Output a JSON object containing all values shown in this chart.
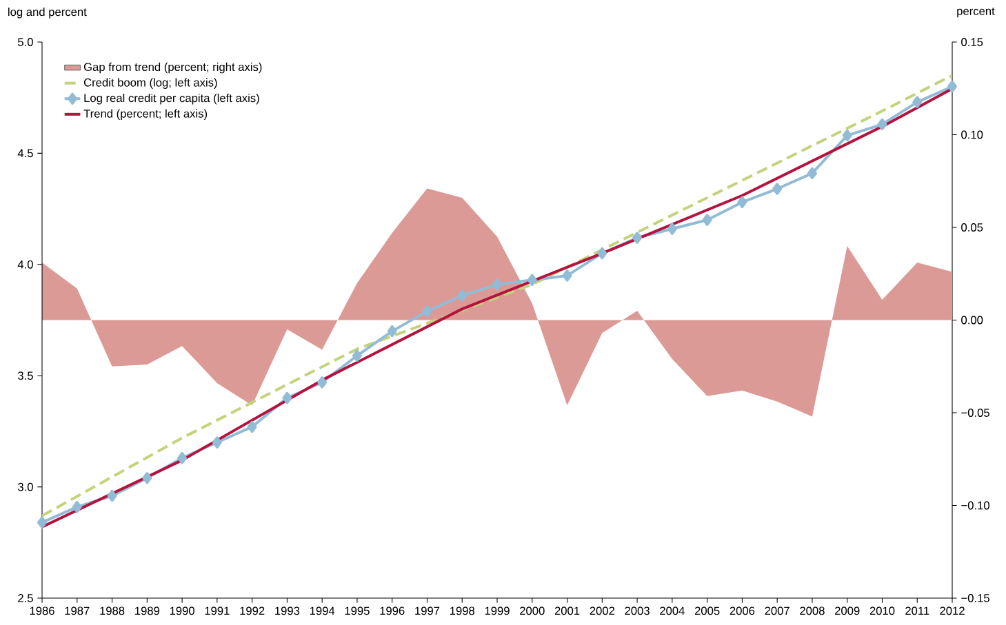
{
  "chart_data": {
    "type": "line",
    "ylabel": "log and percent",
    "y2label": "percent",
    "x": [
      1986,
      1987,
      1988,
      1989,
      1990,
      1991,
      1992,
      1993,
      1994,
      1995,
      1996,
      1997,
      1998,
      1999,
      2000,
      2001,
      2002,
      2003,
      2004,
      2005,
      2006,
      2007,
      2008,
      2009,
      2010,
      2011,
      2012
    ],
    "xlim": [
      1986,
      2012
    ],
    "xticks": [
      1986,
      1987,
      1988,
      1989,
      1990,
      1991,
      1992,
      1993,
      1994,
      1995,
      1996,
      1997,
      1998,
      1999,
      2000,
      2001,
      2002,
      2003,
      2004,
      2005,
      2006,
      2007,
      2008,
      2009,
      2010,
      2011,
      2012
    ],
    "ylim": [
      2.5,
      5
    ],
    "yticks": [
      {
        "value": 2.5,
        "label": "2.5"
      },
      {
        "value": 3,
        "label": "3.0"
      },
      {
        "value": 3.5,
        "label": "3.5"
      },
      {
        "value": 4,
        "label": "4.0"
      },
      {
        "value": 4.5,
        "label": "4.5"
      },
      {
        "value": 5,
        "label": "5.0"
      }
    ],
    "y2lim": [
      -0.15,
      0.15
    ],
    "y2ticks": [
      {
        "value": -0.15,
        "label": "−0.15"
      },
      {
        "value": -0.1,
        "label": "−0.10"
      },
      {
        "value": -0.05,
        "label": "−0.05"
      },
      {
        "value": 0,
        "label": "0.00"
      },
      {
        "value": 0.05,
        "label": "0.05"
      },
      {
        "value": 0.1,
        "label": "0.10"
      },
      {
        "value": 0.15,
        "label": "0.15"
      }
    ],
    "legend": "top left",
    "grid": false,
    "series": [
      {
        "name": "Gap from trend (percent; right axis)",
        "type": "area",
        "axis": "y2",
        "color": "#dc9a96",
        "values": [
          0.031,
          0.017,
          -0.025,
          -0.024,
          -0.014,
          -0.034,
          -0.046,
          -0.005,
          -0.016,
          0.02,
          0.047,
          0.071,
          0.066,
          0.045,
          0.009,
          -0.046,
          -0.007,
          0.005,
          -0.021,
          -0.041,
          -0.038,
          -0.044,
          -0.052,
          0.04,
          0.011,
          0.031,
          0.026
        ]
      },
      {
        "name": "Credit boom (log; left axis)",
        "line_style": "dashed",
        "color": "#c3d37c",
        "x": [
          1986,
          1990,
          1995,
          2000,
          2005,
          2010,
          2012
        ],
        "values": [
          2.87,
          3.22,
          3.62,
          3.91,
          4.3,
          4.69,
          4.85
        ]
      },
      {
        "name": "Log real credit per capita (left axis)",
        "marker": "diamond",
        "color": "#92bcd6",
        "values": [
          2.84,
          2.91,
          2.96,
          3.04,
          3.13,
          3.2,
          3.27,
          3.4,
          3.47,
          3.59,
          3.7,
          3.79,
          3.86,
          3.91,
          3.93,
          3.95,
          4.05,
          4.12,
          4.16,
          4.2,
          4.28,
          4.34,
          4.41,
          4.58,
          4.63,
          4.73,
          4.8
        ]
      },
      {
        "name": "Trend (percent; left axis)",
        "color": "#b5123e",
        "x": [
          1986,
          1990,
          1994,
          1998,
          2002,
          2006,
          2010,
          2012
        ],
        "values": [
          2.82,
          3.12,
          3.48,
          3.8,
          4.05,
          4.31,
          4.62,
          4.79
        ]
      }
    ]
  }
}
